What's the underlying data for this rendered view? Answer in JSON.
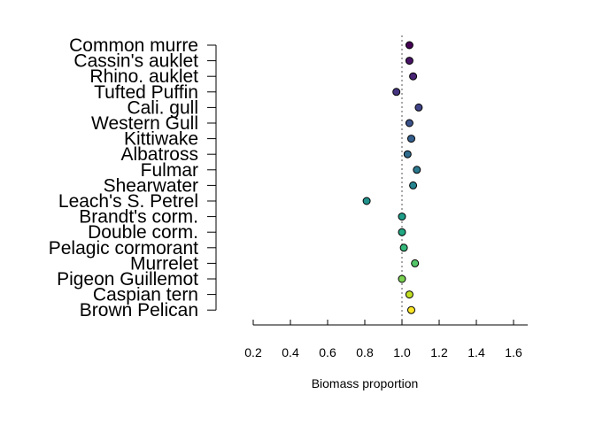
{
  "chart_data": {
    "type": "scatter",
    "xlabel": "Biomass proportion",
    "xlim": [
      0.2,
      1.6
    ],
    "x_ticks": [
      "0.2",
      "0.4",
      "0.6",
      "0.8",
      "1.0",
      "1.2",
      "1.4",
      "1.6"
    ],
    "reference_line": 1.0,
    "grid": false,
    "categories": [
      "Common murre",
      "Cassin's auklet",
      "Rhino. auklet",
      "Tufted Puffin",
      "Cali. gull",
      "Western Gull",
      "Kittiwake",
      "Albatross",
      "Fulmar",
      "Shearwater",
      "Leach's S. Petrel",
      "Brandt's corm.",
      "Double corm.",
      "Pelagic cormorant",
      "Murrelet",
      "Pigeon Guillemot",
      "Caspian tern",
      "Brown Pelican"
    ],
    "values": [
      1.04,
      1.04,
      1.06,
      0.97,
      1.09,
      1.04,
      1.05,
      1.03,
      1.08,
      1.06,
      0.81,
      1.0,
      1.0,
      1.01,
      1.07,
      1.0,
      1.04,
      1.05
    ],
    "colors": [
      "#440154",
      "#471365",
      "#482475",
      "#463480",
      "#414487",
      "#3b528b",
      "#355f8d",
      "#2f6c8e",
      "#2a788e",
      "#25848e",
      "#21918c",
      "#1f9e89",
      "#22a884",
      "#35b779",
      "#54c568",
      "#7ad151",
      "#c2df23",
      "#fde725"
    ]
  }
}
